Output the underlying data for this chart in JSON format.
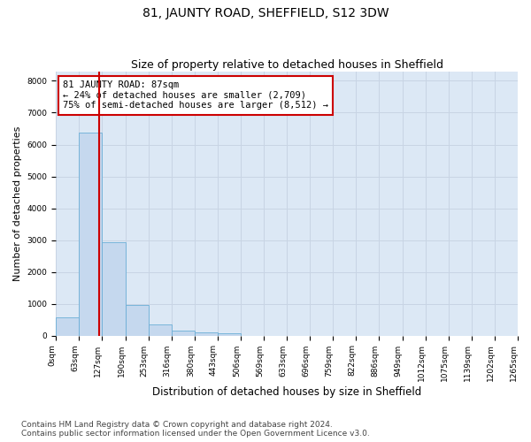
{
  "title": "81, JAUNTY ROAD, SHEFFIELD, S12 3DW",
  "subtitle": "Size of property relative to detached houses in Sheffield",
  "xlabel": "Distribution of detached houses by size in Sheffield",
  "ylabel": "Number of detached properties",
  "bin_labels": [
    "0sqm",
    "63sqm",
    "127sqm",
    "190sqm",
    "253sqm",
    "316sqm",
    "380sqm",
    "443sqm",
    "506sqm",
    "569sqm",
    "633sqm",
    "696sqm",
    "759sqm",
    "822sqm",
    "886sqm",
    "949sqm",
    "1012sqm",
    "1075sqm",
    "1139sqm",
    "1202sqm",
    "1265sqm"
  ],
  "bar_values": [
    560,
    6380,
    2940,
    960,
    360,
    160,
    100,
    80,
    0,
    0,
    0,
    0,
    0,
    0,
    0,
    0,
    0,
    0,
    0,
    0
  ],
  "bar_color": "#c5d8ee",
  "bar_edge_color": "#6baed6",
  "vline_x": 1.37,
  "vline_color": "#cc0000",
  "annotation_text": "81 JAUNTY ROAD: 87sqm\n← 24% of detached houses are smaller (2,709)\n75% of semi-detached houses are larger (8,512) →",
  "annotation_box_facecolor": "#ffffff",
  "annotation_box_edgecolor": "#cc0000",
  "ylim": [
    0,
    8300
  ],
  "yticks": [
    0,
    1000,
    2000,
    3000,
    4000,
    5000,
    6000,
    7000,
    8000
  ],
  "grid_color": "#c8d4e4",
  "bg_color": "#dce8f5",
  "footer_text": "Contains HM Land Registry data © Crown copyright and database right 2024.\nContains public sector information licensed under the Open Government Licence v3.0.",
  "title_fontsize": 10,
  "subtitle_fontsize": 9,
  "xlabel_fontsize": 8.5,
  "ylabel_fontsize": 8,
  "tick_fontsize": 6.5,
  "annotation_fontsize": 7.5,
  "footer_fontsize": 6.5
}
